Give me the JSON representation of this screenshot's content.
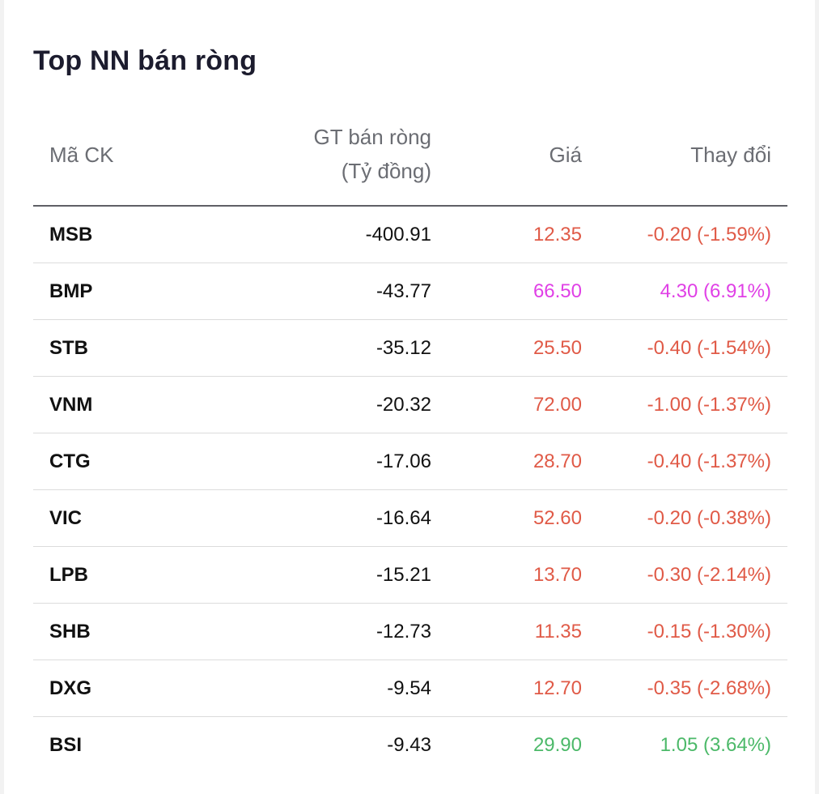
{
  "title": "Top NN bán ròng",
  "headers": {
    "code": "Mã CK",
    "value_line1": "GT bán ròng",
    "value_line2": "(Tỷ đồng)",
    "price": "Giá",
    "change": "Thay đổi"
  },
  "colors": {
    "down": "#e05a47",
    "ceiling": "#e040e6",
    "up": "#4cb969"
  },
  "rows": [
    {
      "code": "MSB",
      "value": "-400.91",
      "price": "12.35",
      "change": "-0.20 (-1.59%)",
      "status": "down"
    },
    {
      "code": "BMP",
      "value": "-43.77",
      "price": "66.50",
      "change": "4.30 (6.91%)",
      "status": "ceiling"
    },
    {
      "code": "STB",
      "value": "-35.12",
      "price": "25.50",
      "change": "-0.40 (-1.54%)",
      "status": "down"
    },
    {
      "code": "VNM",
      "value": "-20.32",
      "price": "72.00",
      "change": "-1.00 (-1.37%)",
      "status": "down"
    },
    {
      "code": "CTG",
      "value": "-17.06",
      "price": "28.70",
      "change": "-0.40 (-1.37%)",
      "status": "down"
    },
    {
      "code": "VIC",
      "value": "-16.64",
      "price": "52.60",
      "change": "-0.20 (-0.38%)",
      "status": "down"
    },
    {
      "code": "LPB",
      "value": "-15.21",
      "price": "13.70",
      "change": "-0.30 (-2.14%)",
      "status": "down"
    },
    {
      "code": "SHB",
      "value": "-12.73",
      "price": "11.35",
      "change": "-0.15 (-1.30%)",
      "status": "down"
    },
    {
      "code": "DXG",
      "value": "-9.54",
      "price": "12.70",
      "change": "-0.35 (-2.68%)",
      "status": "down"
    },
    {
      "code": "BSI",
      "value": "-9.43",
      "price": "29.90",
      "change": "1.05 (3.64%)",
      "status": "up"
    }
  ]
}
